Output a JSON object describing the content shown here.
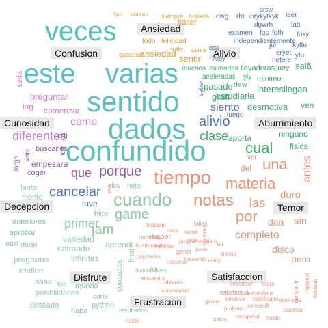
{
  "colors": {
    "teal": "#5bbfc0",
    "salmon": "#e8937a",
    "blue": "#4f74b3",
    "purple": "#8e5aa8",
    "green": "#3aaa6a",
    "sage": "#8cc9a6",
    "orange": "#e3a035",
    "magenta": "#d67ac8",
    "gray": "#9a9a9a",
    "label_bg": "#e8e8e8"
  },
  "labels": [
    "Ansiedad",
    "Confusion",
    "Alivio",
    "Curiosidad",
    "Aburrimiento",
    "Decepcion",
    "Temor",
    "Disfrute",
    "Satisfaccion",
    "Frustracion"
  ],
  "words": [
    "veces",
    "este",
    "varias",
    "sentido",
    "dados",
    "confundido",
    "tiempo",
    "materia",
    "cuando",
    "notas",
    "alivio",
    "cual",
    "una",
    "porque",
    "cancelar",
    "game",
    "por",
    "las",
    "jam",
    "que",
    "primer",
    "clase",
    "diferentes",
    "como",
    "siento",
    "antes",
    "duro",
    "completo",
    "sin",
    "daã",
    "disco",
    "pero",
    "pasado",
    "estudiarla",
    "sentir",
    "interesllegan",
    "salã",
    "desmotiva",
    "ven",
    "aporta",
    "ninguno",
    "fisica",
    "buscarlos",
    "empezara",
    "coger",
    "crti",
    "preguntar",
    "comenzar",
    "ing",
    "seria",
    "ansiedad",
    "hacer",
    "todo",
    "felicidad",
    "guastado",
    "trato",
    "cerca",
    "muchos",
    "calmadas",
    "aceleradas",
    "minimo",
    "rhrw",
    "yiy",
    "llevaderas",
    "jrery",
    "netere",
    "eryet",
    "ytu",
    "examen",
    "fgs",
    "fdfh",
    "independientemente",
    "dgwrh",
    "i5rykytkyk",
    "ewg",
    "rht",
    "arsw",
    "leer",
    "lab",
    "tuky",
    "kyttu",
    "jur",
    "tipo",
    "sintaxis",
    "siempre",
    "hubiera",
    "dds",
    "7u5y",
    "gran",
    "entrando",
    "variedad",
    "infinitas",
    "programa",
    "realice",
    "saba",
    "posibilidades",
    "deseado",
    "haba",
    "python",
    "mundo",
    "fue",
    "corte",
    "contactos",
    "final",
    "resultados",
    "aprendi",
    "tuve",
    "hice",
    "dos",
    "nota",
    "era",
    "haber",
    "poder",
    "trabajos",
    "gente",
    "aprobar",
    "anteriores",
    "otro",
    "dado",
    "lento",
    "mente",
    "largo",
    "visto",
    "lcal",
    "nacional",
    "programaciã",
    "haciendo",
    "paso",
    "estoy",
    "sentime",
    "satisfaccia",
    "encontrar",
    "genial",
    "profesor",
    "autoestima",
    "logro",
    "recuperar",
    "todos",
    "ver",
    "del",
    "bla",
    "concretos",
    "encuentro",
    "obtener",
    "universidad",
    "nombres",
    "pude",
    "frustracion",
    "emotivo",
    "sensaciã",
    "clasificado",
    "compartir",
    "regional",
    "entonces",
    "clasificar",
    "dedique",
    "tirado",
    "mbito",
    "disparadores",
    "sobre",
    "rato",
    "nace",
    "faltan",
    "poco",
    "mi",
    "pocos",
    "saber",
    "luego",
    "otros"
  ]
}
